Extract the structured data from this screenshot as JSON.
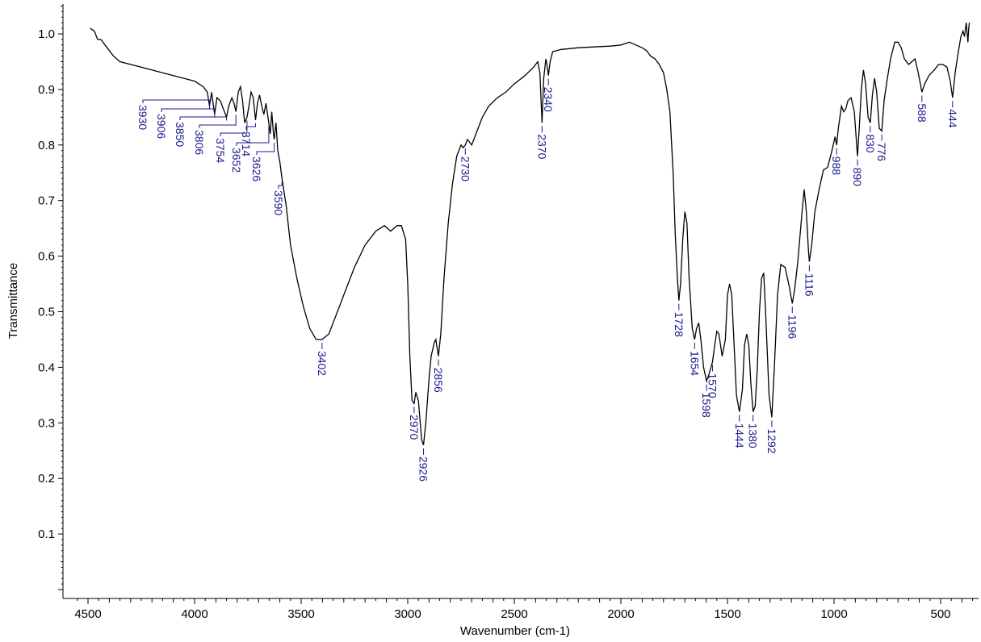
{
  "chart_data": {
    "type": "line",
    "xlabel": "Wavenumber (cm-1)",
    "ylabel": "Transmittance",
    "xlim": [
      4500,
      400
    ],
    "x_reversed": true,
    "ylim": [
      0.0,
      1.05
    ],
    "xticks": [
      4500,
      4000,
      3500,
      3000,
      2500,
      2000,
      1500,
      1000,
      500
    ],
    "yticks": [
      0.1,
      0.2,
      0.3,
      0.4,
      0.5,
      0.6,
      0.7,
      0.8,
      0.9,
      1.0
    ],
    "xtick_labels": [
      "4500",
      "4000",
      "3500",
      "3000",
      "2500",
      "2000",
      "1500",
      "1000",
      "500"
    ],
    "ytick_labels": [
      "0.1",
      "0.2",
      "0.3",
      "0.4",
      "0.5",
      "0.6",
      "0.7",
      "0.8",
      "0.9",
      "1.0"
    ],
    "grid": false,
    "line_color": "#000000",
    "label_color": "#1a1a8c",
    "series": [
      {
        "points": [
          [
            4490,
            1.01
          ],
          [
            4470,
            1.005
          ],
          [
            4455,
            0.99
          ],
          [
            4440,
            0.99
          ],
          [
            4420,
            0.98
          ],
          [
            4400,
            0.97
          ],
          [
            4380,
            0.96
          ],
          [
            4350,
            0.95
          ],
          [
            4300,
            0.945
          ],
          [
            4200,
            0.935
          ],
          [
            4100,
            0.925
          ],
          [
            4050,
            0.92
          ],
          [
            4000,
            0.915
          ],
          [
            3960,
            0.905
          ],
          [
            3940,
            0.895
          ],
          [
            3930,
            0.87
          ],
          [
            3920,
            0.895
          ],
          [
            3906,
            0.855
          ],
          [
            3895,
            0.885
          ],
          [
            3880,
            0.88
          ],
          [
            3865,
            0.865
          ],
          [
            3850,
            0.85
          ],
          [
            3840,
            0.87
          ],
          [
            3825,
            0.885
          ],
          [
            3815,
            0.875
          ],
          [
            3806,
            0.86
          ],
          [
            3795,
            0.895
          ],
          [
            3785,
            0.905
          ],
          [
            3775,
            0.88
          ],
          [
            3765,
            0.84
          ],
          [
            3754,
            0.85
          ],
          [
            3745,
            0.87
          ],
          [
            3735,
            0.895
          ],
          [
            3725,
            0.885
          ],
          [
            3714,
            0.845
          ],
          [
            3705,
            0.875
          ],
          [
            3695,
            0.89
          ],
          [
            3685,
            0.87
          ],
          [
            3675,
            0.855
          ],
          [
            3665,
            0.875
          ],
          [
            3652,
            0.84
          ],
          [
            3645,
            0.82
          ],
          [
            3638,
            0.86
          ],
          [
            3630,
            0.82
          ],
          [
            3626,
            0.81
          ],
          [
            3618,
            0.84
          ],
          [
            3610,
            0.79
          ],
          [
            3600,
            0.77
          ],
          [
            3590,
            0.74
          ],
          [
            3570,
            0.69
          ],
          [
            3550,
            0.62
          ],
          [
            3520,
            0.56
          ],
          [
            3490,
            0.51
          ],
          [
            3460,
            0.47
          ],
          [
            3430,
            0.45
          ],
          [
            3402,
            0.45
          ],
          [
            3370,
            0.46
          ],
          [
            3330,
            0.5
          ],
          [
            3290,
            0.54
          ],
          [
            3250,
            0.58
          ],
          [
            3200,
            0.62
          ],
          [
            3150,
            0.645
          ],
          [
            3110,
            0.655
          ],
          [
            3080,
            0.645
          ],
          [
            3050,
            0.655
          ],
          [
            3030,
            0.655
          ],
          [
            3010,
            0.63
          ],
          [
            3000,
            0.55
          ],
          [
            2990,
            0.42
          ],
          [
            2980,
            0.34
          ],
          [
            2970,
            0.335
          ],
          [
            2962,
            0.355
          ],
          [
            2950,
            0.34
          ],
          [
            2935,
            0.27
          ],
          [
            2926,
            0.26
          ],
          [
            2915,
            0.3
          ],
          [
            2900,
            0.38
          ],
          [
            2890,
            0.42
          ],
          [
            2875,
            0.445
          ],
          [
            2868,
            0.45
          ],
          [
            2856,
            0.42
          ],
          [
            2845,
            0.46
          ],
          [
            2830,
            0.56
          ],
          [
            2810,
            0.66
          ],
          [
            2790,
            0.73
          ],
          [
            2770,
            0.78
          ],
          [
            2750,
            0.8
          ],
          [
            2740,
            0.795
          ],
          [
            2730,
            0.8
          ],
          [
            2720,
            0.81
          ],
          [
            2700,
            0.8
          ],
          [
            2680,
            0.82
          ],
          [
            2650,
            0.85
          ],
          [
            2620,
            0.87
          ],
          [
            2580,
            0.885
          ],
          [
            2540,
            0.895
          ],
          [
            2500,
            0.91
          ],
          [
            2450,
            0.925
          ],
          [
            2410,
            0.94
          ],
          [
            2390,
            0.95
          ],
          [
            2380,
            0.93
          ],
          [
            2370,
            0.84
          ],
          [
            2362,
            0.92
          ],
          [
            2352,
            0.955
          ],
          [
            2345,
            0.94
          ],
          [
            2340,
            0.925
          ],
          [
            2332,
            0.95
          ],
          [
            2320,
            0.968
          ],
          [
            2280,
            0.972
          ],
          [
            2200,
            0.975
          ],
          [
            2100,
            0.977
          ],
          [
            2050,
            0.978
          ],
          [
            2000,
            0.98
          ],
          [
            1960,
            0.985
          ],
          [
            1930,
            0.98
          ],
          [
            1900,
            0.975
          ],
          [
            1880,
            0.97
          ],
          [
            1860,
            0.96
          ],
          [
            1840,
            0.955
          ],
          [
            1820,
            0.945
          ],
          [
            1800,
            0.93
          ],
          [
            1785,
            0.9
          ],
          [
            1770,
            0.86
          ],
          [
            1755,
            0.75
          ],
          [
            1745,
            0.64
          ],
          [
            1735,
            0.56
          ],
          [
            1728,
            0.52
          ],
          [
            1720,
            0.55
          ],
          [
            1710,
            0.63
          ],
          [
            1700,
            0.68
          ],
          [
            1690,
            0.66
          ],
          [
            1680,
            0.56
          ],
          [
            1665,
            0.47
          ],
          [
            1654,
            0.45
          ],
          [
            1645,
            0.47
          ],
          [
            1635,
            0.48
          ],
          [
            1625,
            0.45
          ],
          [
            1612,
            0.4
          ],
          [
            1598,
            0.375
          ],
          [
            1585,
            0.39
          ],
          [
            1570,
            0.41
          ],
          [
            1560,
            0.44
          ],
          [
            1550,
            0.465
          ],
          [
            1540,
            0.46
          ],
          [
            1525,
            0.42
          ],
          [
            1510,
            0.45
          ],
          [
            1500,
            0.53
          ],
          [
            1490,
            0.55
          ],
          [
            1480,
            0.53
          ],
          [
            1470,
            0.45
          ],
          [
            1458,
            0.35
          ],
          [
            1444,
            0.32
          ],
          [
            1430,
            0.36
          ],
          [
            1420,
            0.44
          ],
          [
            1410,
            0.46
          ],
          [
            1400,
            0.44
          ],
          [
            1390,
            0.37
          ],
          [
            1380,
            0.32
          ],
          [
            1370,
            0.33
          ],
          [
            1360,
            0.4
          ],
          [
            1350,
            0.5
          ],
          [
            1340,
            0.56
          ],
          [
            1330,
            0.57
          ],
          [
            1320,
            0.49
          ],
          [
            1305,
            0.35
          ],
          [
            1292,
            0.31
          ],
          [
            1280,
            0.4
          ],
          [
            1265,
            0.53
          ],
          [
            1250,
            0.585
          ],
          [
            1230,
            0.58
          ],
          [
            1210,
            0.545
          ],
          [
            1196,
            0.515
          ],
          [
            1185,
            0.54
          ],
          [
            1170,
            0.59
          ],
          [
            1150,
            0.68
          ],
          [
            1140,
            0.72
          ],
          [
            1130,
            0.68
          ],
          [
            1120,
            0.61
          ],
          [
            1116,
            0.59
          ],
          [
            1105,
            0.62
          ],
          [
            1090,
            0.68
          ],
          [
            1070,
            0.72
          ],
          [
            1050,
            0.755
          ],
          [
            1030,
            0.76
          ],
          [
            1010,
            0.79
          ],
          [
            995,
            0.815
          ],
          [
            988,
            0.8
          ],
          [
            980,
            0.83
          ],
          [
            965,
            0.87
          ],
          [
            955,
            0.86
          ],
          [
            945,
            0.865
          ],
          [
            935,
            0.88
          ],
          [
            920,
            0.885
          ],
          [
            905,
            0.86
          ],
          [
            890,
            0.78
          ],
          [
            882,
            0.83
          ],
          [
            872,
            0.9
          ],
          [
            862,
            0.935
          ],
          [
            852,
            0.91
          ],
          [
            840,
            0.85
          ],
          [
            830,
            0.84
          ],
          [
            820,
            0.89
          ],
          [
            810,
            0.92
          ],
          [
            800,
            0.895
          ],
          [
            788,
            0.83
          ],
          [
            776,
            0.825
          ],
          [
            765,
            0.88
          ],
          [
            750,
            0.92
          ],
          [
            735,
            0.955
          ],
          [
            715,
            0.985
          ],
          [
            700,
            0.985
          ],
          [
            685,
            0.975
          ],
          [
            670,
            0.955
          ],
          [
            650,
            0.945
          ],
          [
            635,
            0.95
          ],
          [
            620,
            0.955
          ],
          [
            605,
            0.93
          ],
          [
            588,
            0.895
          ],
          [
            575,
            0.91
          ],
          [
            555,
            0.925
          ],
          [
            530,
            0.935
          ],
          [
            510,
            0.945
          ],
          [
            490,
            0.945
          ],
          [
            470,
            0.94
          ],
          [
            455,
            0.915
          ],
          [
            444,
            0.885
          ],
          [
            432,
            0.93
          ],
          [
            420,
            0.96
          ],
          [
            405,
            0.995
          ],
          [
            395,
            1.005
          ],
          [
            388,
            0.995
          ],
          [
            380,
            1.02
          ],
          [
            372,
            0.985
          ],
          [
            368,
            1.01
          ],
          [
            365,
            1.02
          ]
        ]
      }
    ],
    "peak_labels": [
      "3930",
      "3906",
      "3850",
      "3806",
      "3754",
      "3714",
      "3652",
      "3626",
      "3590",
      "3402",
      "2970",
      "2926",
      "2856",
      "2730",
      "2370",
      "2340",
      "1728",
      "1654",
      "1598",
      "1570",
      "1444",
      "1380",
      "1292",
      "1196",
      "1116",
      "988",
      "890",
      "830",
      "776",
      "588",
      "444"
    ],
    "peaks": [
      {
        "label": "3930",
        "x": 3930,
        "y": 0.87
      },
      {
        "label": "3906",
        "x": 3906,
        "y": 0.855
      },
      {
        "label": "3850",
        "x": 3850,
        "y": 0.85
      },
      {
        "label": "3806",
        "x": 3806,
        "y": 0.86
      },
      {
        "label": "3754",
        "x": 3754,
        "y": 0.85
      },
      {
        "label": "3714",
        "x": 3714,
        "y": 0.845
      },
      {
        "label": "3652",
        "x": 3652,
        "y": 0.84
      },
      {
        "label": "3626",
        "x": 3626,
        "y": 0.81
      },
      {
        "label": "3590",
        "x": 3590,
        "y": 0.74
      },
      {
        "label": "3402",
        "x": 3402,
        "y": 0.45
      },
      {
        "label": "2970",
        "x": 2970,
        "y": 0.335
      },
      {
        "label": "2926",
        "x": 2926,
        "y": 0.26
      },
      {
        "label": "2856",
        "x": 2856,
        "y": 0.42
      },
      {
        "label": "2730",
        "x": 2730,
        "y": 0.8
      },
      {
        "label": "2370",
        "x": 2370,
        "y": 0.84
      },
      {
        "label": "2340",
        "x": 2340,
        "y": 0.925
      },
      {
        "label": "1728",
        "x": 1728,
        "y": 0.52
      },
      {
        "label": "1654",
        "x": 1654,
        "y": 0.45
      },
      {
        "label": "1598",
        "x": 1598,
        "y": 0.375
      },
      {
        "label": "1570",
        "x": 1570,
        "y": 0.41
      },
      {
        "label": "1444",
        "x": 1444,
        "y": 0.32
      },
      {
        "label": "1380",
        "x": 1380,
        "y": 0.32
      },
      {
        "label": "1292",
        "x": 1292,
        "y": 0.31
      },
      {
        "label": "1196",
        "x": 1196,
        "y": 0.515
      },
      {
        "label": "1116",
        "x": 1116,
        "y": 0.59
      },
      {
        "label": "988",
        "x": 988,
        "y": 0.8
      },
      {
        "label": "890",
        "x": 890,
        "y": 0.78
      },
      {
        "label": "830",
        "x": 830,
        "y": 0.84
      },
      {
        "label": "776",
        "x": 776,
        "y": 0.825
      },
      {
        "label": "588",
        "x": 588,
        "y": 0.895
      },
      {
        "label": "444",
        "x": 444,
        "y": 0.885
      }
    ]
  }
}
